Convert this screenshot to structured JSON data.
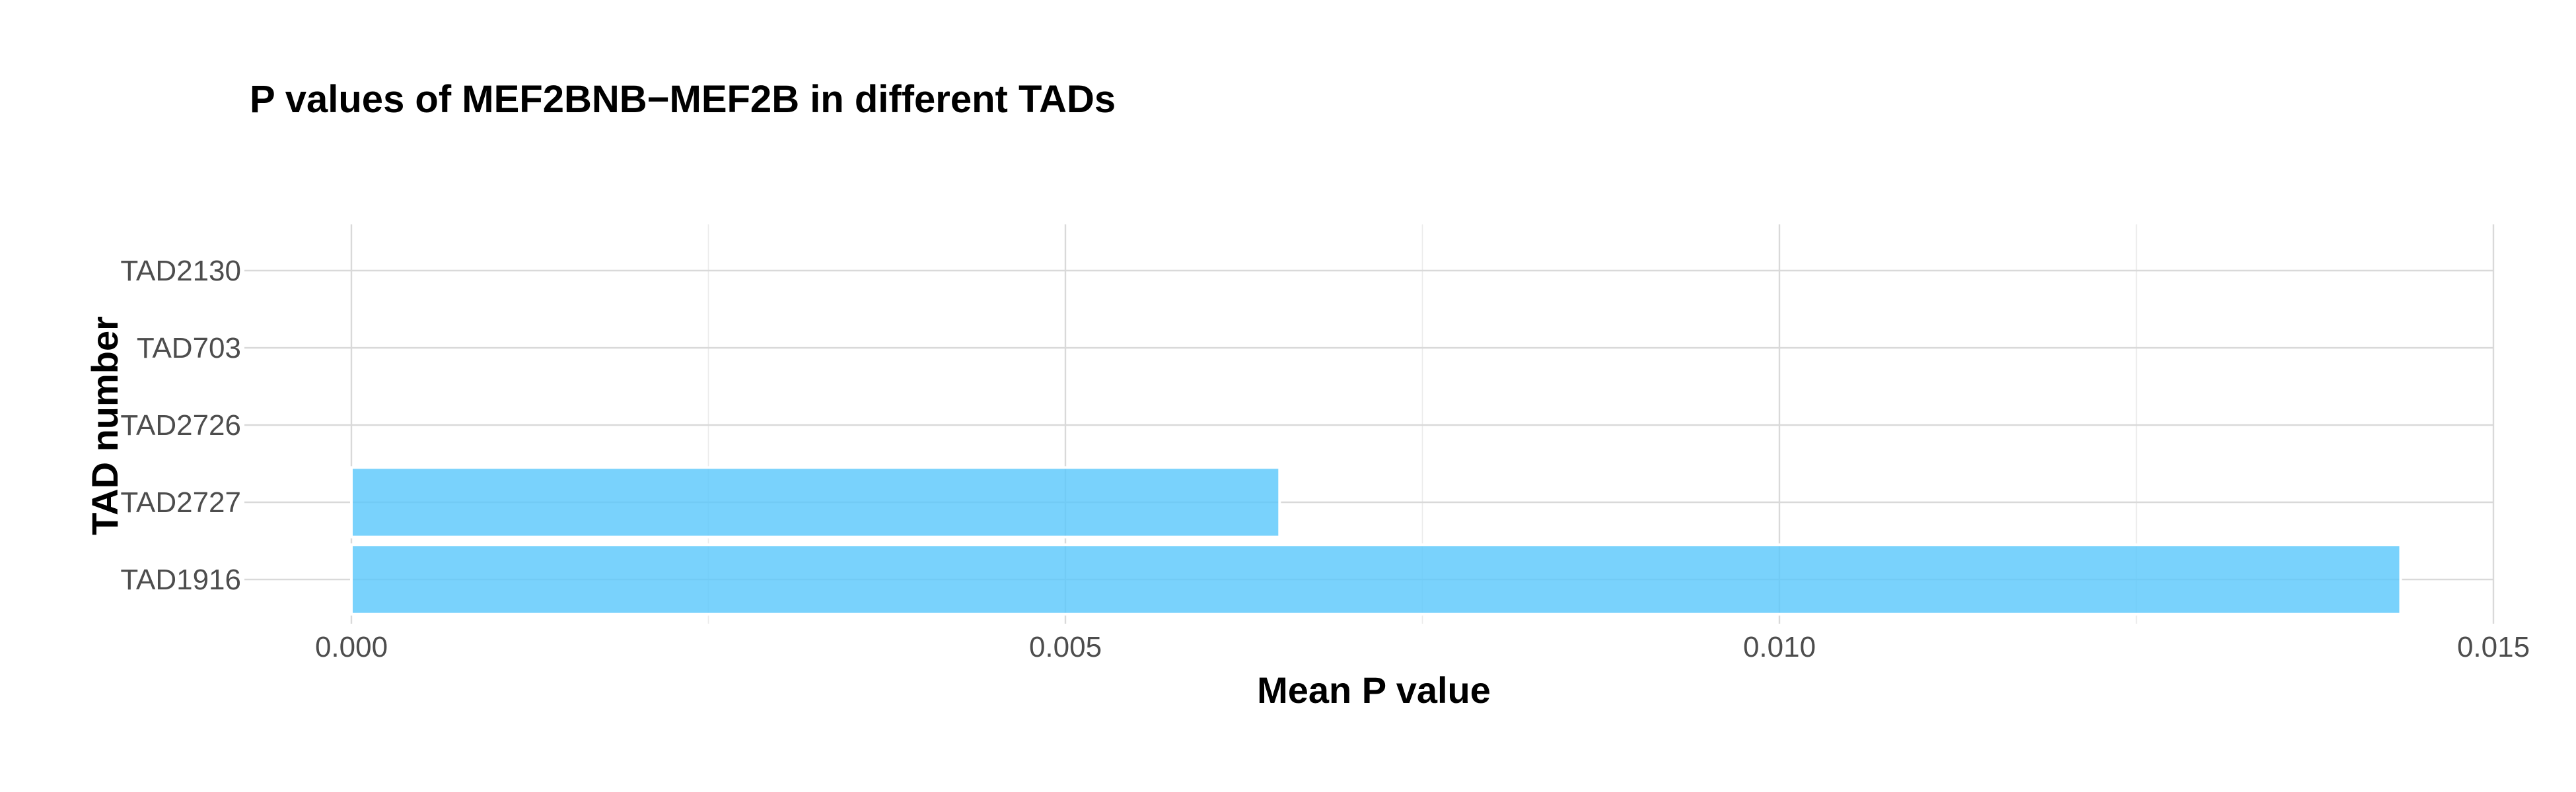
{
  "chart_data": {
    "type": "bar",
    "orientation": "horizontal",
    "title": "P values of MEF2BNB−MEF2B in different TADs",
    "xlabel": "Mean P value",
    "ylabel": "TAD number",
    "categories": [
      "TAD2130",
      "TAD703",
      "TAD2726",
      "TAD2727",
      "TAD1916"
    ],
    "values": [
      0.0,
      0.0,
      0.0,
      0.0065,
      0.01435
    ],
    "xlim": [
      0,
      0.015
    ],
    "x_ticks": [
      {
        "value": 0,
        "label": "0.000"
      },
      {
        "value": 0.005,
        "label": "0.005"
      },
      {
        "value": 0.01,
        "label": "0.010"
      },
      {
        "value": 0.015,
        "label": "0.015"
      }
    ],
    "x_minor_ticks": [
      0.0025,
      0.0075,
      0.0125
    ],
    "grid": true,
    "legend": "none",
    "bar_color": "#5bc8fb"
  }
}
